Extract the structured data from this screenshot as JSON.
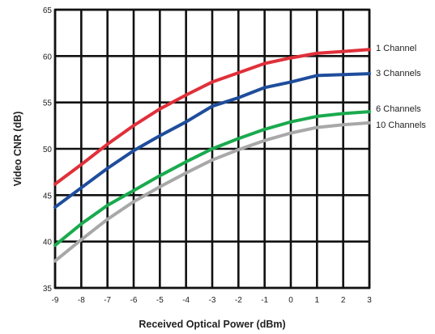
{
  "chart_data": {
    "type": "line",
    "title": "",
    "xlabel": "Received Optical Power (dBm)",
    "ylabel": "Video CNR (dB)",
    "xlim": [
      -9,
      3
    ],
    "ylim": [
      35,
      65
    ],
    "x_ticks": [
      "-9",
      "-8",
      "-7",
      "-6",
      "-5",
      "-4",
      "-3",
      "-2",
      "-1",
      "0",
      "1",
      "2",
      "3"
    ],
    "y_ticks": [
      "35",
      "40",
      "45",
      "50",
      "55",
      "60",
      "65"
    ],
    "grid": true,
    "legend": "right-end labels",
    "x": [
      -9,
      -8,
      -7,
      -6,
      -5,
      -4,
      -3,
      -2,
      -1,
      0,
      1,
      2,
      3
    ],
    "series": [
      {
        "name": "1 Channel",
        "color": "#e0303a",
        "values": [
          46.2,
          48.3,
          50.5,
          52.5,
          54.3,
          55.8,
          57.2,
          58.2,
          59.2,
          59.8,
          60.3,
          60.5,
          60.7
        ]
      },
      {
        "name": "3 Channels",
        "color": "#1f4d9c",
        "values": [
          43.7,
          45.8,
          47.9,
          49.8,
          51.4,
          52.9,
          54.6,
          55.5,
          56.6,
          57.2,
          57.9,
          58.0,
          58.1
        ]
      },
      {
        "name": "6 Channels",
        "color": "#1aaa4e",
        "values": [
          39.6,
          41.9,
          43.9,
          45.5,
          47.1,
          48.6,
          50.0,
          51.1,
          52.1,
          52.9,
          53.5,
          53.8,
          54.0
        ]
      },
      {
        "name": "10 Channels",
        "color": "#a8a8a8",
        "values": [
          37.9,
          40.2,
          42.4,
          44.3,
          45.9,
          47.4,
          48.8,
          49.9,
          50.9,
          51.7,
          52.3,
          52.6,
          52.8
        ]
      }
    ]
  }
}
